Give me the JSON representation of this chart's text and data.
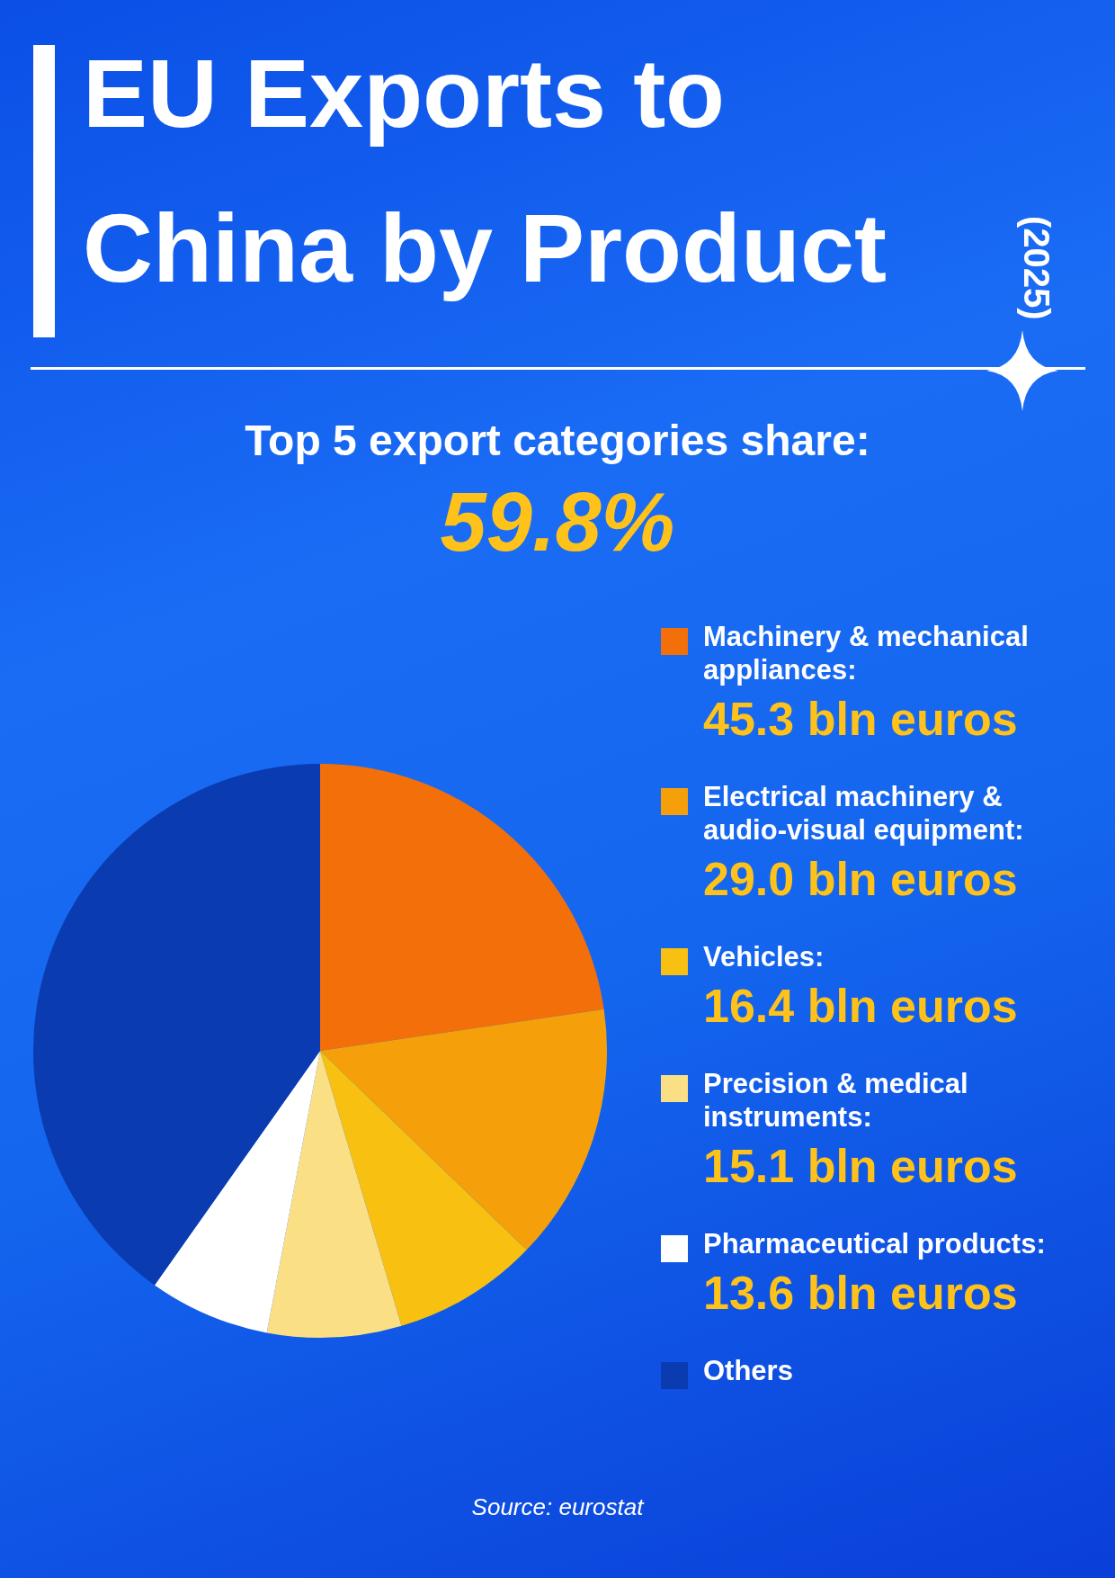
{
  "chart_data": {
    "type": "pie",
    "title": "EU Exports to China by Product",
    "subtitle": "Top 5 export categories share:",
    "annotations": [
      "(2025)",
      "59.8%",
      "Source: eurostat",
      ":"
    ],
    "categories": [
      "Machinery & mechanical appliances",
      "Electrical machinery & audio-visual equipment",
      "Vehicles",
      "Precision & medical instruments",
      "Pharmaceutical products",
      "Others"
    ],
    "values": [
      45.3,
      29.0,
      16.4,
      15.1,
      13.6,
      80.3
    ],
    "value_labels": [
      "45.3 bln euros",
      "29.0 bln euros",
      "16.4 bln euros",
      "15.1 bln euros",
      "13.6 bln euros",
      null
    ],
    "colors": [
      "#f36f0a",
      "#f5a00a",
      "#f8c010",
      "#fadf84",
      "#ffffff",
      "#0a3bb0"
    ],
    "legend": "right"
  }
}
